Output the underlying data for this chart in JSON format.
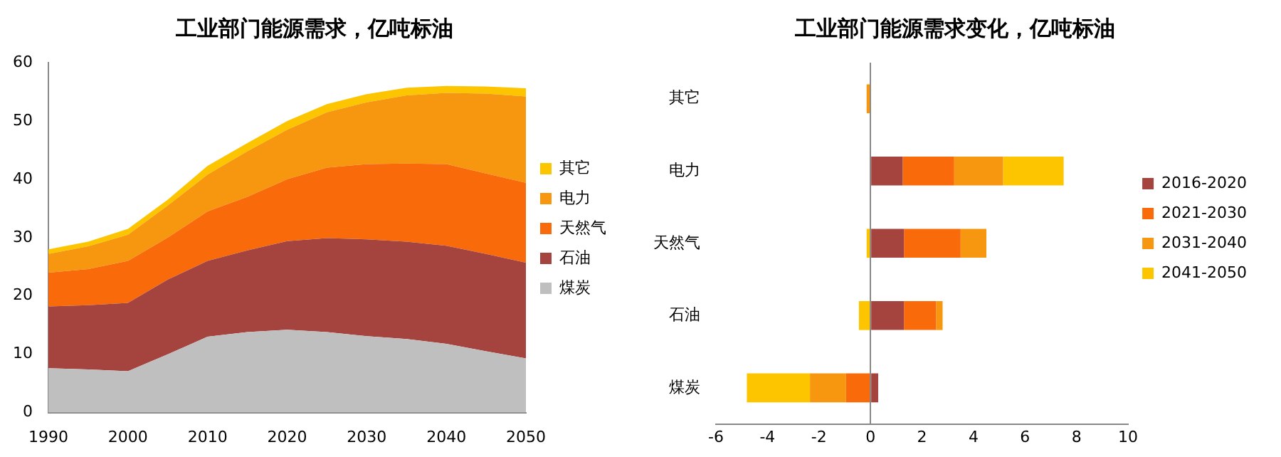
{
  "chart_data": [
    {
      "type": "area",
      "title": "工业部门能源需求，亿吨标油",
      "stacked": true,
      "legend": "right",
      "x": [
        1990,
        1995,
        2000,
        2005,
        2010,
        2015,
        2020,
        2025,
        2030,
        2035,
        2040,
        2045,
        2050
      ],
      "xlim": [
        1990,
        2050
      ],
      "xticks": [
        1990,
        2000,
        2010,
        2020,
        2030,
        2040,
        2050
      ],
      "ylim": [
        0,
        60
      ],
      "yticks": [
        0,
        10,
        20,
        30,
        40,
        50,
        60
      ],
      "series": [
        {
          "name": "煤炭",
          "color": "#bfbfbf",
          "values": [
            7.6,
            7.4,
            7.1,
            10.0,
            13.0,
            13.8,
            14.2,
            13.8,
            13.1,
            12.6,
            11.8,
            10.5,
            9.3
          ]
        },
        {
          "name": "石油",
          "color": "#a5443f",
          "values": [
            10.6,
            11.0,
            11.7,
            12.8,
            13.0,
            14.0,
            15.2,
            16.1,
            16.6,
            16.7,
            16.8,
            16.7,
            16.4
          ]
        },
        {
          "name": "天然气",
          "color": "#f96b0a",
          "values": [
            5.8,
            6.2,
            7.2,
            7.2,
            8.5,
            9.2,
            10.6,
            12.1,
            12.9,
            13.4,
            14.0,
            13.8,
            13.7
          ]
        },
        {
          "name": "电力",
          "color": "#f7960f",
          "values": [
            3.2,
            3.9,
            4.5,
            5.5,
            6.3,
            7.8,
            8.5,
            9.5,
            10.6,
            11.7,
            12.2,
            13.7,
            14.8
          ]
        },
        {
          "name": "其它",
          "color": "#fcc500",
          "values": [
            0.8,
            0.8,
            1.0,
            1.0,
            1.5,
            1.4,
            1.5,
            1.4,
            1.4,
            1.3,
            1.2,
            1.2,
            1.4
          ]
        }
      ]
    },
    {
      "type": "bar",
      "title": "工业部门能源需求变化，亿吨标油",
      "orientation": "horizontal",
      "stacked": true,
      "legend": "right",
      "categories": [
        "其它",
        "电力",
        "天然气",
        "石油",
        "煤炭"
      ],
      "xlim": [
        -6,
        10
      ],
      "xticks": [
        -6,
        -4,
        -2,
        0,
        2,
        4,
        6,
        8,
        10
      ],
      "series": [
        {
          "name": "2016-2020",
          "color": "#a5443f",
          "values": [
            null,
            1.25,
            1.3,
            1.3,
            0.3
          ]
        },
        {
          "name": "2021-2030",
          "color": "#f96b0a",
          "values": [
            null,
            2.0,
            2.2,
            1.25,
            -0.95
          ]
        },
        {
          "name": "2031-2040",
          "color": "#f7960f",
          "values": [
            -0.15,
            1.9,
            1.0,
            0.25,
            -1.4
          ]
        },
        {
          "name": "2041-2050",
          "color": "#fcc500",
          "values": [
            null,
            2.35,
            -0.15,
            -0.45,
            -2.45
          ]
        }
      ]
    }
  ]
}
